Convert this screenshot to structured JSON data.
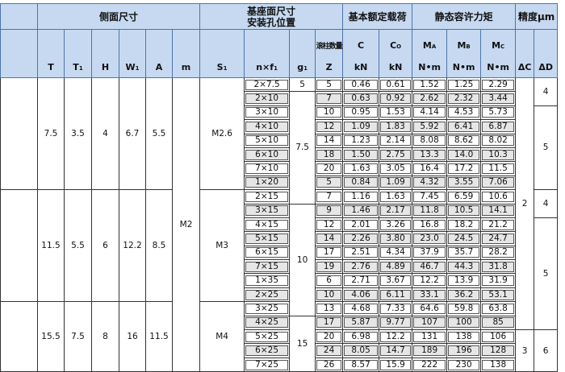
{
  "header": {
    "side_dims": "侧面尺寸",
    "mount_line1": "基座面尺寸",
    "mount_line2": "安装孔位置",
    "rated_load": "基本额定载荷",
    "static_moment": "静态容许力矩",
    "accuracy": "精度μm",
    "cols": {
      "T": "T",
      "T1": "T",
      "T1_sub": "1",
      "H": "H",
      "W1": "W",
      "W1_sub": "1",
      "A": "A",
      "m": "m",
      "S1": "S",
      "S1_sub": "1",
      "nf": "n×f",
      "nf_sub": "1",
      "g1": "g",
      "g1_sub": "1",
      "Z_label": "滚柱数量",
      "Z": "Z",
      "C": "C",
      "C_unit": "kN",
      "C0": "C",
      "C0_sub": "O",
      "C0_unit": "kN",
      "MA": "M",
      "MA_sub": "A",
      "MA_unit": "N•m",
      "MB": "M",
      "MB_sub": "B",
      "MB_unit": "N•m",
      "MC": "M",
      "MC_sub": "C",
      "MC_unit": "N•m",
      "dC": "ΔC",
      "dD": "ΔD"
    }
  },
  "m_value": "M2",
  "groups": [
    {
      "T": "7.5",
      "T1": "3.5",
      "H": "4",
      "W1": "6.7",
      "A": "5.5",
      "S1": "M2.6"
    },
    {
      "T": "11.5",
      "T1": "5.5",
      "H": "6",
      "W1": "12.2",
      "A": "8.5",
      "S1": "M3"
    },
    {
      "T": "15.5",
      "T1": "7.5",
      "H": "8",
      "W1": "16",
      "A": "11.5",
      "S1": "M4"
    }
  ],
  "rows": [
    {
      "nf": "2×7.5",
      "Z": "5",
      "C": "0.46",
      "C0": "0.61",
      "MA": "1.52",
      "MB": "1.25",
      "MC": "2.29"
    },
    {
      "nf": "2×10",
      "Z": "7",
      "C": "0.63",
      "C0": "0.92",
      "MA": "2.62",
      "MB": "2.32",
      "MC": "3.44"
    },
    {
      "nf": "3×10",
      "Z": "10",
      "C": "0.95",
      "C0": "1.53",
      "MA": "4.14",
      "MB": "4.53",
      "MC": "5.73"
    },
    {
      "nf": "4×10",
      "Z": "12",
      "C": "1.09",
      "C0": "1.83",
      "MA": "5.92",
      "MB": "6.41",
      "MC": "6.87"
    },
    {
      "nf": "5×10",
      "Z": "14",
      "C": "1.23",
      "C0": "2.14",
      "MA": "8.08",
      "MB": "8.62",
      "MC": "8.02"
    },
    {
      "nf": "6×10",
      "Z": "18",
      "C": "1.50",
      "C0": "2.75",
      "MA": "13.3",
      "MB": "14.0",
      "MC": "10.3"
    },
    {
      "nf": "7×10",
      "Z": "20",
      "C": "1.63",
      "C0": "3.05",
      "MA": "16.4",
      "MB": "17.2",
      "MC": "11.5"
    },
    {
      "nf": "1×20",
      "Z": "5",
      "C": "0.84",
      "C0": "1.09",
      "MA": "4.32",
      "MB": "3.55",
      "MC": "7.06"
    },
    {
      "nf": "2×15",
      "Z": "7",
      "C": "1.16",
      "C0": "1.63",
      "MA": "7.45",
      "MB": "6.59",
      "MC": "10.6"
    },
    {
      "nf": "3×15",
      "Z": "9",
      "C": "1.46",
      "C0": "2.17",
      "MA": "11.8",
      "MB": "10.5",
      "MC": "14.1"
    },
    {
      "nf": "4×15",
      "Z": "12",
      "C": "2.01",
      "C0": "3.26",
      "MA": "16.8",
      "MB": "18.2",
      "MC": "21.2"
    },
    {
      "nf": "5×15",
      "Z": "14",
      "C": "2.26",
      "C0": "3.80",
      "MA": "23.0",
      "MB": "24.5",
      "MC": "24.7"
    },
    {
      "nf": "6×15",
      "Z": "17",
      "C": "2.51",
      "C0": "4.34",
      "MA": "37.9",
      "MB": "35.7",
      "MC": "28.2"
    },
    {
      "nf": "7×15",
      "Z": "19",
      "C": "2.76",
      "C0": "4.89",
      "MA": "46.7",
      "MB": "44.3",
      "MC": "31.8"
    },
    {
      "nf": "1×35",
      "Z": "6",
      "C": "2.71",
      "C0": "3.67",
      "MA": "12.2",
      "MB": "13.9",
      "MC": "31.9"
    },
    {
      "nf": "2×25",
      "Z": "10",
      "C": "4.06",
      "C0": "6.11",
      "MA": "33.1",
      "MB": "36.2",
      "MC": "53.1"
    },
    {
      "nf": "3×25",
      "Z": "13",
      "C": "4.68",
      "C0": "7.33",
      "MA": "64.6",
      "MB": "59.8",
      "MC": "63.8"
    },
    {
      "nf": "4×25",
      "Z": "17",
      "C": "5.87",
      "C0": "9.77",
      "MA": "107",
      "MB": "100",
      "MC": "85"
    },
    {
      "nf": "5×25",
      "Z": "20",
      "C": "6.98",
      "C0": "12.2",
      "MA": "131",
      "MB": "138",
      "MC": "106"
    },
    {
      "nf": "6×25",
      "Z": "24",
      "C": "8.05",
      "C0": "14.7",
      "MA": "189",
      "MB": "196",
      "MC": "128"
    },
    {
      "nf": "7×25",
      "Z": "26",
      "C": "8.57",
      "C0": "15.9",
      "MA": "222",
      "MB": "230",
      "MC": "138"
    }
  ],
  "g1_spans": [
    {
      "value": "5",
      "rows": 1
    },
    {
      "value": "7.5",
      "rows": 8
    },
    {
      "value": "10",
      "rows": 8
    },
    {
      "value": "15",
      "rows": 7
    }
  ],
  "dC_spans": [
    {
      "value": "2",
      "rows": 18
    },
    {
      "value": "3",
      "rows": 6
    }
  ],
  "dD_spans": [
    {
      "value": "4",
      "rows": 2
    },
    {
      "value": "5",
      "rows": 6
    },
    {
      "value": "4",
      "rows": 2
    },
    {
      "value": "5",
      "rows": 8
    },
    {
      "value": "6",
      "rows": 6
    }
  ]
}
